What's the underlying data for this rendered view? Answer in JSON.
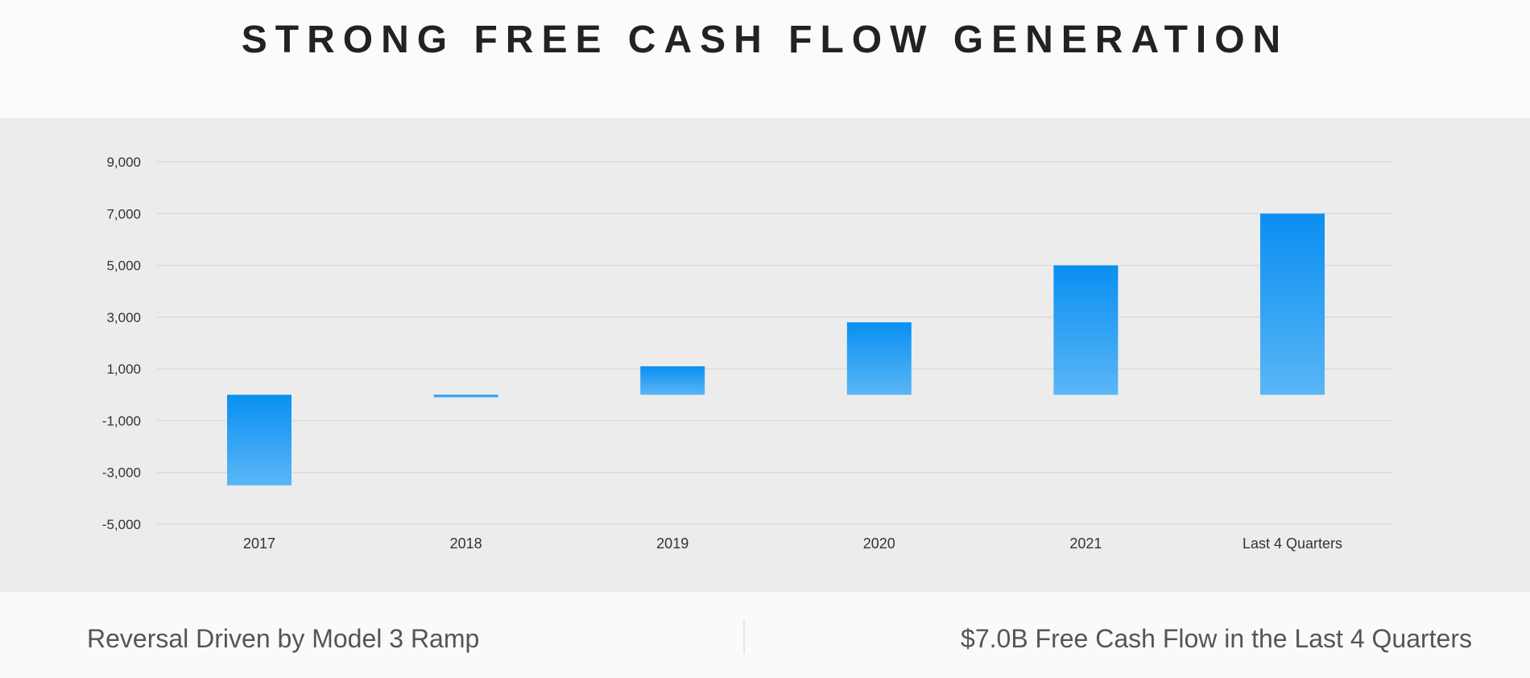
{
  "title": "STRONG FREE CASH FLOW GENERATION",
  "footnotes": {
    "left": "Reversal Driven by Model 3 Ramp",
    "right": "$7.0B Free Cash Flow in the Last 4 Quarters"
  },
  "colors": {
    "bar_top": "#0a8ff2",
    "bar_bottom": "#5ab6f6",
    "panel": "#ececec"
  },
  "chart_data": {
    "type": "bar",
    "title": "",
    "xlabel": "",
    "ylabel": "",
    "categories": [
      "2017",
      "2018",
      "2019",
      "2020",
      "2021",
      "Last 4 Quarters"
    ],
    "values": [
      -3500,
      -100,
      1100,
      2800,
      5000,
      7000
    ],
    "ylim": [
      -5000,
      9000
    ],
    "yticks": [
      9000,
      7000,
      5000,
      3000,
      1000,
      -1000,
      -3000,
      -5000
    ],
    "ytick_labels": [
      "9,000",
      "7,000",
      "5,000",
      "3,000",
      "1,000",
      "-1,000",
      "-3,000",
      "-5,000"
    ],
    "grid": true,
    "legend": "none"
  }
}
